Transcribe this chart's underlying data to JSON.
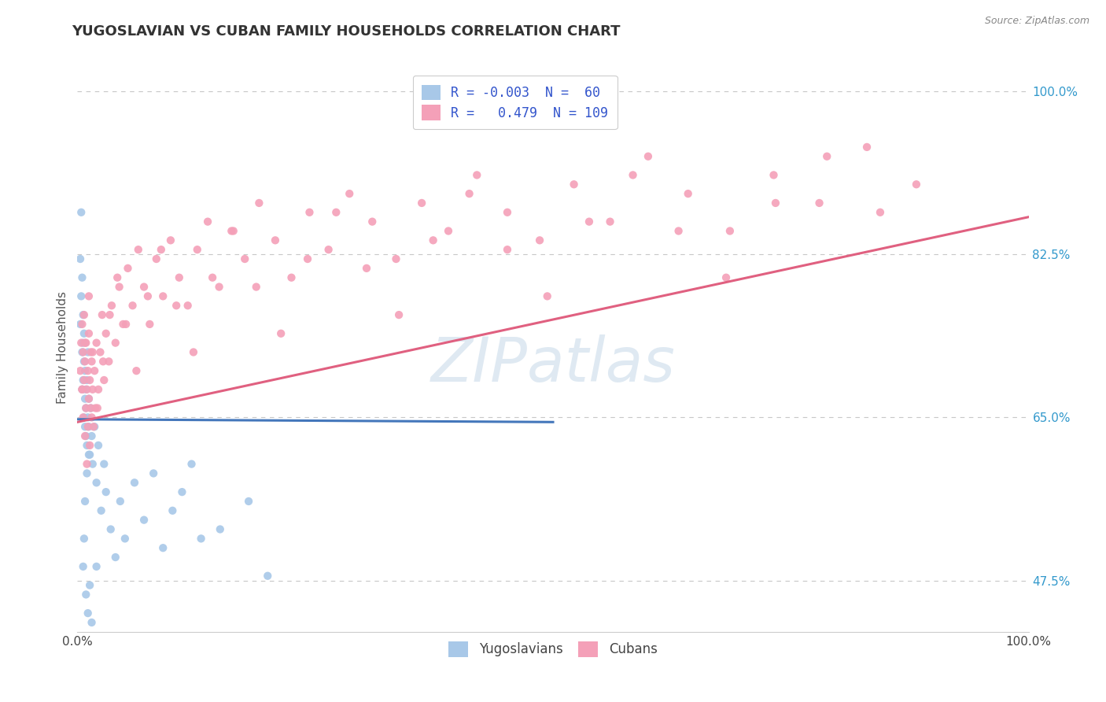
{
  "title": "YUGOSLAVIAN VS CUBAN FAMILY HOUSEHOLDS CORRELATION CHART",
  "source_text": "Source: ZipAtlas.com",
  "ylabel": "Family Households",
  "x_min": 0.0,
  "x_max": 1.0,
  "y_min": 0.42,
  "y_max": 1.03,
  "ytick_right": [
    1.0,
    0.825,
    0.65,
    0.475
  ],
  "ytick_right_labels": [
    "100.0%",
    "82.5%",
    "65.0%",
    "47.5%"
  ],
  "grid_color": "#c8c8c8",
  "background_color": "#ffffff",
  "yugoslav_color": "#a8c8e8",
  "cuban_color": "#f4a0b8",
  "yugoslav_line_color": "#4477bb",
  "cuban_line_color": "#e06080",
  "legend_R_yugoslav": "-0.003",
  "legend_N_yugoslav": "60",
  "legend_R_cuban": "0.479",
  "legend_N_cuban": "109",
  "legend_label_yugoslav": "Yugoslavians",
  "legend_label_cuban": "Cubans",
  "watermark_text": "ZIPatlas",
  "yugoslav_line_x0": 0.0,
  "yugoslav_line_x1": 0.5,
  "yugoslav_line_y0": 0.648,
  "yugoslav_line_y1": 0.645,
  "cuban_line_x0": 0.0,
  "cuban_line_x1": 1.0,
  "cuban_line_y0": 0.645,
  "cuban_line_y1": 0.865,
  "yugoslav_x": [
    0.003,
    0.003,
    0.004,
    0.004,
    0.005,
    0.005,
    0.005,
    0.006,
    0.006,
    0.006,
    0.007,
    0.007,
    0.007,
    0.008,
    0.008,
    0.008,
    0.009,
    0.009,
    0.009,
    0.01,
    0.01,
    0.011,
    0.011,
    0.012,
    0.012,
    0.013,
    0.014,
    0.015,
    0.016,
    0.018,
    0.02,
    0.022,
    0.025,
    0.028,
    0.03,
    0.035,
    0.04,
    0.045,
    0.05,
    0.06,
    0.07,
    0.08,
    0.09,
    0.1,
    0.11,
    0.12,
    0.13,
    0.15,
    0.18,
    0.2,
    0.01,
    0.012,
    0.008,
    0.006,
    0.007,
    0.009,
    0.011,
    0.013,
    0.015,
    0.02
  ],
  "yugoslav_y": [
    0.82,
    0.75,
    0.87,
    0.78,
    0.72,
    0.68,
    0.8,
    0.73,
    0.76,
    0.69,
    0.65,
    0.71,
    0.74,
    0.67,
    0.64,
    0.7,
    0.63,
    0.68,
    0.66,
    0.62,
    0.69,
    0.65,
    0.72,
    0.64,
    0.67,
    0.61,
    0.66,
    0.63,
    0.6,
    0.64,
    0.58,
    0.62,
    0.55,
    0.6,
    0.57,
    0.53,
    0.5,
    0.56,
    0.52,
    0.58,
    0.54,
    0.59,
    0.51,
    0.55,
    0.57,
    0.6,
    0.52,
    0.53,
    0.56,
    0.48,
    0.59,
    0.61,
    0.56,
    0.49,
    0.52,
    0.46,
    0.44,
    0.47,
    0.43,
    0.49
  ],
  "cuban_x": [
    0.003,
    0.004,
    0.005,
    0.005,
    0.006,
    0.006,
    0.007,
    0.007,
    0.008,
    0.008,
    0.009,
    0.009,
    0.01,
    0.01,
    0.011,
    0.011,
    0.012,
    0.012,
    0.013,
    0.013,
    0.014,
    0.014,
    0.015,
    0.015,
    0.016,
    0.017,
    0.018,
    0.019,
    0.02,
    0.022,
    0.024,
    0.026,
    0.028,
    0.03,
    0.033,
    0.036,
    0.04,
    0.044,
    0.048,
    0.053,
    0.058,
    0.064,
    0.07,
    0.076,
    0.083,
    0.09,
    0.098,
    0.107,
    0.116,
    0.126,
    0.137,
    0.149,
    0.162,
    0.176,
    0.191,
    0.208,
    0.225,
    0.244,
    0.264,
    0.286,
    0.31,
    0.335,
    0.362,
    0.39,
    0.42,
    0.452,
    0.486,
    0.522,
    0.56,
    0.6,
    0.642,
    0.686,
    0.732,
    0.78,
    0.83,
    0.882,
    0.005,
    0.008,
    0.012,
    0.016,
    0.021,
    0.027,
    0.034,
    0.042,
    0.051,
    0.062,
    0.074,
    0.088,
    0.104,
    0.122,
    0.142,
    0.164,
    0.188,
    0.214,
    0.242,
    0.272,
    0.304,
    0.338,
    0.374,
    0.412,
    0.452,
    0.494,
    0.538,
    0.584,
    0.632,
    0.682,
    0.734,
    0.788,
    0.844
  ],
  "cuban_y": [
    0.7,
    0.73,
    0.68,
    0.75,
    0.65,
    0.72,
    0.69,
    0.76,
    0.63,
    0.71,
    0.66,
    0.73,
    0.6,
    0.68,
    0.64,
    0.7,
    0.67,
    0.74,
    0.62,
    0.69,
    0.66,
    0.72,
    0.65,
    0.71,
    0.68,
    0.64,
    0.7,
    0.66,
    0.73,
    0.68,
    0.72,
    0.76,
    0.69,
    0.74,
    0.71,
    0.77,
    0.73,
    0.79,
    0.75,
    0.81,
    0.77,
    0.83,
    0.79,
    0.75,
    0.82,
    0.78,
    0.84,
    0.8,
    0.77,
    0.83,
    0.86,
    0.79,
    0.85,
    0.82,
    0.88,
    0.84,
    0.8,
    0.87,
    0.83,
    0.89,
    0.86,
    0.82,
    0.88,
    0.85,
    0.91,
    0.87,
    0.84,
    0.9,
    0.86,
    0.93,
    0.89,
    0.85,
    0.91,
    0.88,
    0.94,
    0.9,
    0.68,
    0.73,
    0.78,
    0.72,
    0.66,
    0.71,
    0.76,
    0.8,
    0.75,
    0.7,
    0.78,
    0.83,
    0.77,
    0.72,
    0.8,
    0.85,
    0.79,
    0.74,
    0.82,
    0.87,
    0.81,
    0.76,
    0.84,
    0.89,
    0.83,
    0.78,
    0.86,
    0.91,
    0.85,
    0.8,
    0.88,
    0.93,
    0.87
  ]
}
